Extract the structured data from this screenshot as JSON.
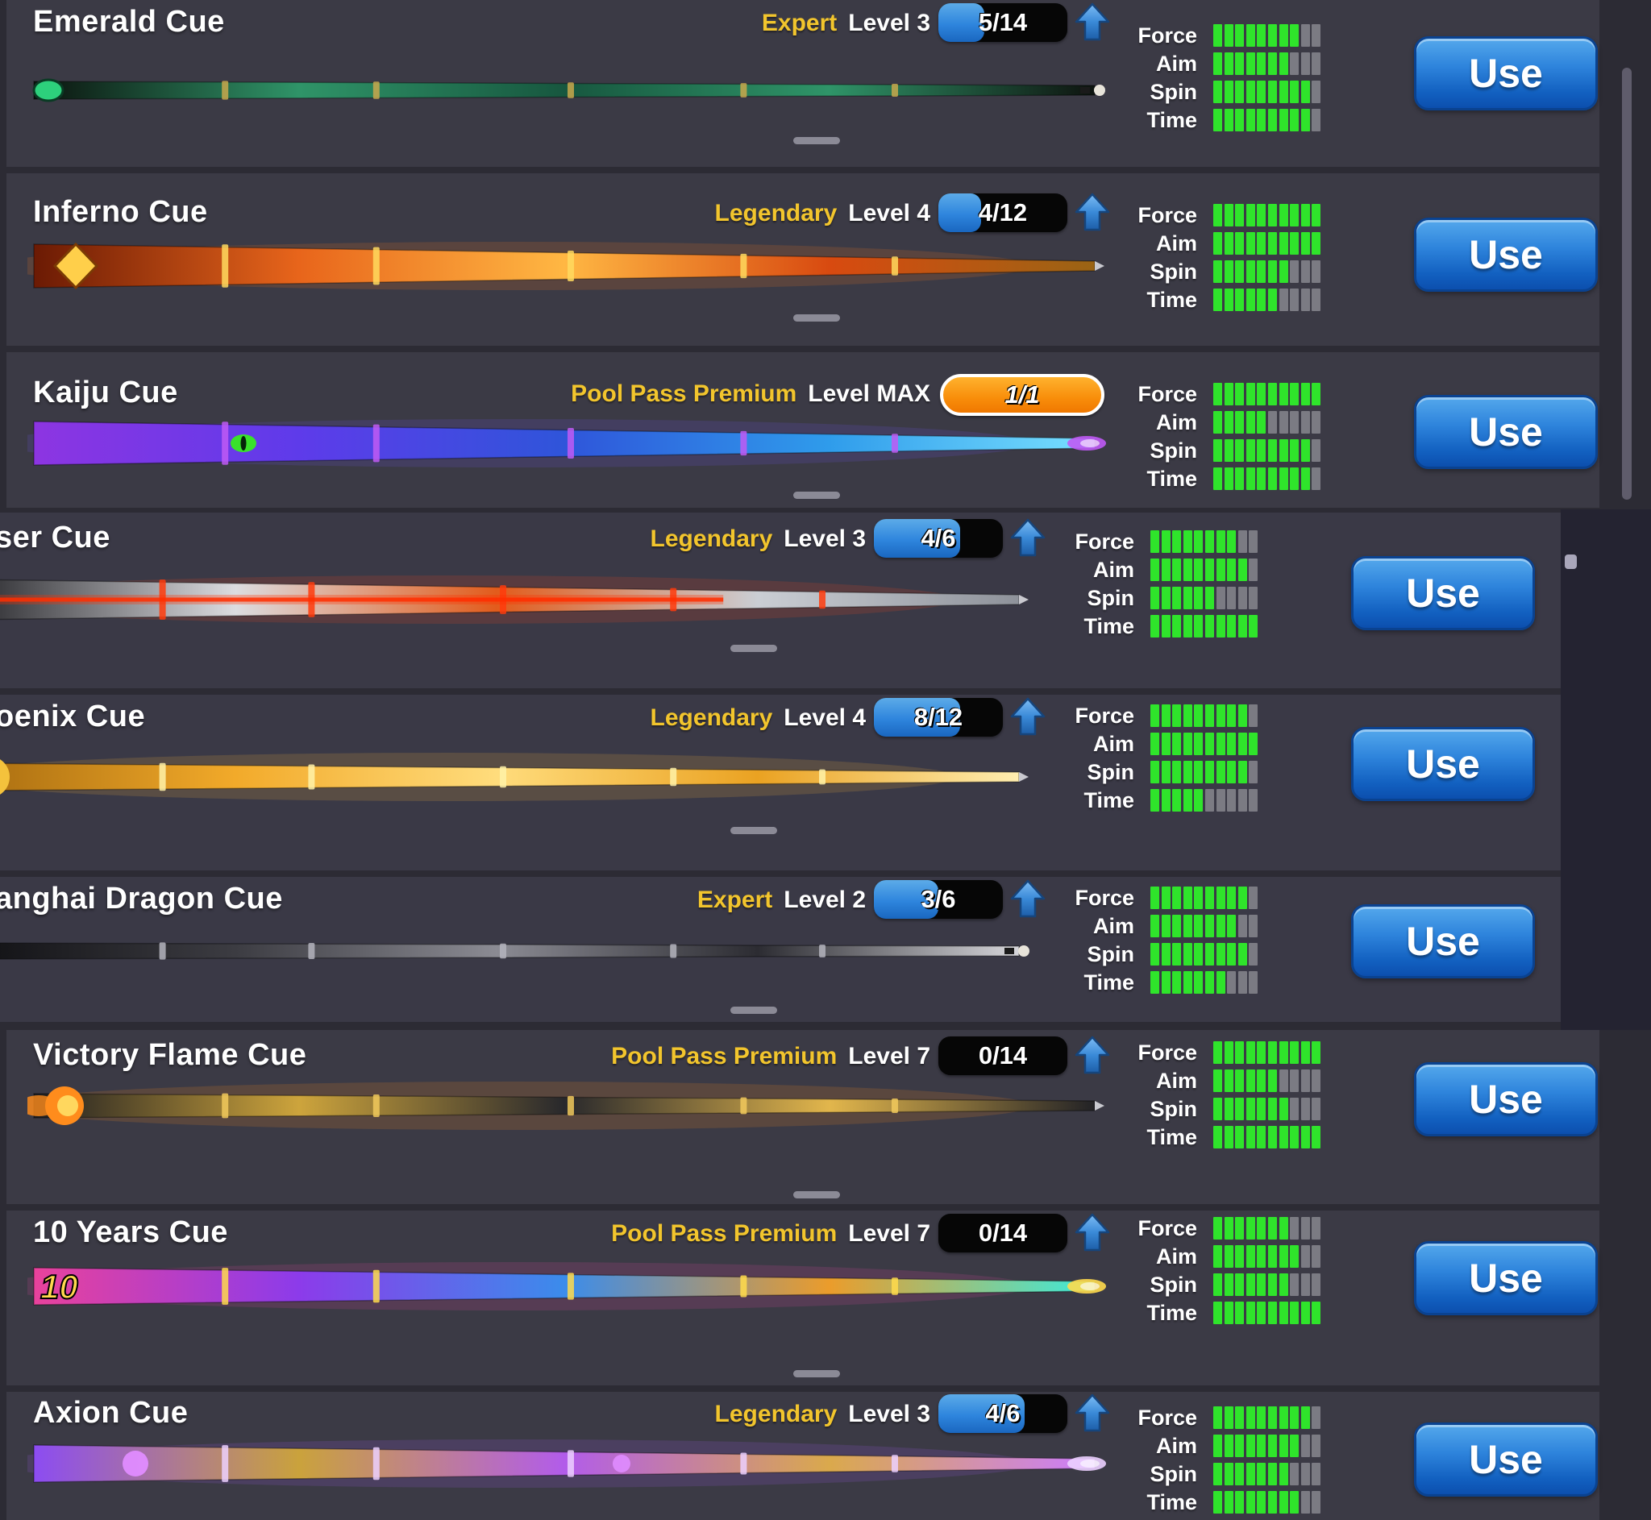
{
  "ui": {
    "accent_gold": "#f2c52d",
    "progress_blue": "#2e85dd",
    "max_orange": "#f07800",
    "stat_green": "#2fe42b",
    "stat_gray": "#7b7b83",
    "button_blue": "#1260c0"
  },
  "stat_labels": [
    "Force",
    "Aim",
    "Spin",
    "Time"
  ],
  "stat_segments": 10,
  "rows": [
    {
      "name": "Emerald Cue",
      "rarity": "Expert",
      "level": "Level 3",
      "progress": {
        "current": 5,
        "max": 14,
        "label": "5/14",
        "is_max": false
      },
      "stats": {
        "Force": 8,
        "Aim": 7,
        "Spin": 9,
        "Time": 9
      },
      "use_label": "Use",
      "art": {
        "butt": 11,
        "tip": "classic",
        "base": [
          "#0b120d",
          "#2f9468",
          "#17573f",
          "#2f9468",
          "#0e130f"
        ],
        "accent": "#c9a84c",
        "glow": null,
        "ornament": "gem",
        "ornament_color": "#2dd07c"
      }
    },
    {
      "name": "Inferno Cue",
      "rarity": "Legendary",
      "level": "Level 4",
      "progress": {
        "current": 4,
        "max": 12,
        "label": "4/12",
        "is_max": false
      },
      "stats": {
        "Force": 10,
        "Aim": 10,
        "Spin": 7,
        "Time": 6
      },
      "use_label": "Use",
      "art": {
        "butt": 27,
        "tip": "point",
        "base": [
          "#6b1a04",
          "#e8651b",
          "#ffb743",
          "#d84a10",
          "#9a6414"
        ],
        "accent": "#ffd95e",
        "glow": "#ff7a1e",
        "ornament": "diamond",
        "ornament_color": "#ffcf4a"
      }
    },
    {
      "name": "Kaiju Cue",
      "rarity": "Pool Pass Premium",
      "level": "Level MAX",
      "progress": {
        "current": 1,
        "max": 1,
        "label": "1/1",
        "is_max": true
      },
      "stats": {
        "Force": 10,
        "Aim": 5,
        "Spin": 9,
        "Time": 9
      },
      "use_label": "Use",
      "art": {
        "butt": 27,
        "tip": "glow",
        "base": [
          "#8d35e2",
          "#5e3bea",
          "#2f55da",
          "#2f9ceb",
          "#79e0ff"
        ],
        "accent": "#c05af5",
        "glow": "#6f55f0",
        "ornament": "eye",
        "ornament_color": "#39e22b"
      }
    },
    {
      "name": "ser Cue",
      "rarity": "Legendary",
      "level": "Level 3",
      "progress": {
        "current": 4,
        "max": 6,
        "label": "4/6",
        "is_max": false
      },
      "stats": {
        "Force": 8,
        "Aim": 9,
        "Spin": 6,
        "Time": 10
      },
      "use_label": "Use",
      "art": {
        "butt": 25,
        "tip": "point",
        "base": [
          "#2c2c30",
          "#dcdce0",
          "#e25c1c",
          "#caced4",
          "#8e929a"
        ],
        "accent": "#ff3b0c",
        "glow": "#ff4a1c",
        "ornament": "laser",
        "ornament_color": "#ff2e00"
      }
    },
    {
      "name": "oenix Cue",
      "rarity": "Legendary",
      "level": "Level 4",
      "progress": {
        "current": 8,
        "max": 12,
        "label": "8/12",
        "is_max": false
      },
      "stats": {
        "Force": 9,
        "Aim": 10,
        "Spin": 9,
        "Time": 5
      },
      "use_label": "Use",
      "art": {
        "butt": 17,
        "tip": "point",
        "base": [
          "#a96d10",
          "#f2aa2a",
          "#ffdc7c",
          "#eaa222",
          "#ffeeb0"
        ],
        "accent": "#fff2a8",
        "glow": "#ffb840",
        "ornament": "sun",
        "ornament_color": "#f4c23c"
      }
    },
    {
      "name": "anghai Dragon Cue",
      "rarity": "Expert",
      "level": "Level 2",
      "progress": {
        "current": 3,
        "max": 6,
        "label": "3/6",
        "is_max": false
      },
      "stats": {
        "Force": 9,
        "Aim": 8,
        "Spin": 9,
        "Time": 7
      },
      "use_label": "Use",
      "art": {
        "butt": 10,
        "tip": "classic",
        "base": [
          "#111114",
          "#3c3c42",
          "#8b8b93",
          "#2c2c32",
          "#d6d6da"
        ],
        "accent": "#b4b4bd",
        "glow": null,
        "ornament": "none",
        "ornament_color": ""
      }
    },
    {
      "name": "Victory Flame Cue",
      "rarity": "Pool Pass Premium",
      "level": "Level 7",
      "progress": {
        "current": 0,
        "max": 14,
        "label": "0/14",
        "is_max": false
      },
      "stats": {
        "Force": 10,
        "Aim": 6,
        "Spin": 7,
        "Time": 10
      },
      "use_label": "Use",
      "art": {
        "butt": 15,
        "tip": "point",
        "base": [
          "#1d1d21",
          "#cda43c",
          "#28282c",
          "#e2b64c",
          "#222226"
        ],
        "accent": "#f1c95c",
        "glow": "#ff8c1c",
        "ornament": "flame",
        "ornament_color": "#ff8c1c"
      }
    },
    {
      "name": "10 Years Cue",
      "rarity": "Pool Pass Premium",
      "level": "Level 7",
      "progress": {
        "current": 0,
        "max": 14,
        "label": "0/14",
        "is_max": false
      },
      "stats": {
        "Force": 7,
        "Aim": 8,
        "Spin": 7,
        "Time": 10
      },
      "use_label": "Use",
      "art": {
        "butt": 23,
        "tip": "glow",
        "base": [
          "#e9429c",
          "#8c3bea",
          "#3b8ceb",
          "#eb9c2b",
          "#3bebdc"
        ],
        "accent": "#ffda4c",
        "glow": "#e94caa",
        "ornament": "text10",
        "ornament_color": "#ffd84e"
      }
    },
    {
      "name": "Axion Cue",
      "rarity": "Legendary",
      "level": "Level 3",
      "progress": {
        "current": 4,
        "max": 6,
        "label": "4/6",
        "is_max": false
      },
      "stats": {
        "Force": 9,
        "Aim": 8,
        "Spin": 7,
        "Time": 8
      },
      "use_label": "Use",
      "art": {
        "butt": 23,
        "tip": "glow",
        "base": [
          "#8c4cf2",
          "#caa23c",
          "#b25cea",
          "#daa94c",
          "#cc7cff"
        ],
        "accent": "#ecd0ff",
        "glow": "#a25cf2",
        "ornament": "orb",
        "ornament_color": "#e08cff"
      }
    }
  ]
}
